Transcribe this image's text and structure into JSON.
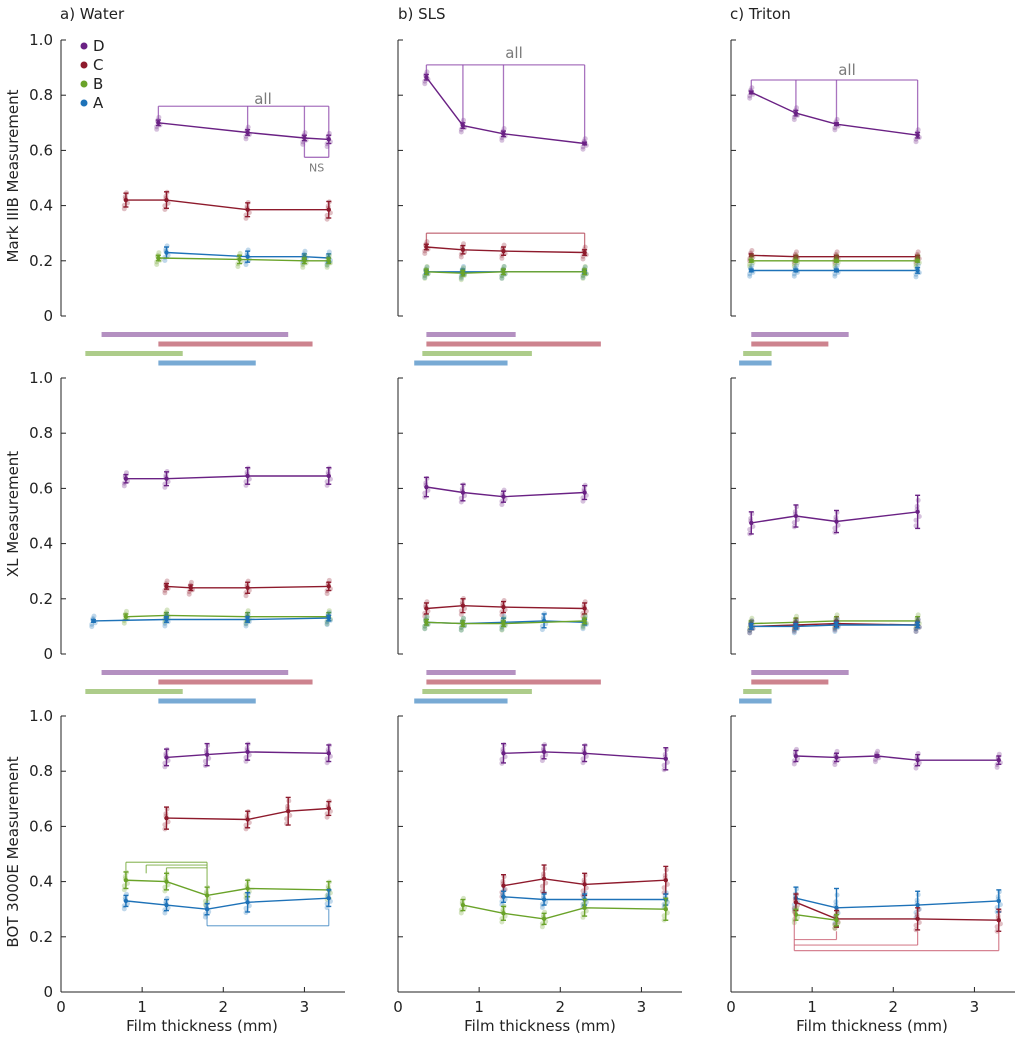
{
  "chart_data": {
    "type": "line",
    "panel_titles": [
      "a) Water",
      "b) SLS",
      "c) Triton"
    ],
    "row_ylabels": [
      "Mark IIIB Measurement",
      "XL Measurement",
      "BOT 3000E Measurement"
    ],
    "xlabel": "Film thickness (mm)",
    "xlim": [
      0,
      3.5
    ],
    "ylim": [
      0,
      1.0
    ],
    "xticks": [
      "0",
      "1",
      "2",
      "3"
    ],
    "yticks": [
      "0",
      "0.2",
      "0.4",
      "0.6",
      "0.8",
      "1.0"
    ],
    "legend": {
      "placement": "top-left",
      "entries": [
        "D",
        "C",
        "B",
        "A"
      ]
    },
    "colors": {
      "D": "#6a2184",
      "C": "#8e1a2c",
      "B": "#6aa329",
      "A": "#1e72b8"
    },
    "annotations": {
      "all": "all",
      "ns": "NS"
    },
    "panels": [
      {
        "row": 0,
        "col": 0,
        "series": [
          {
            "name": "D",
            "x": [
              1.2,
              2.3,
              3.0,
              3.3
            ],
            "y": [
              0.7,
              0.665,
              0.645,
              0.64
            ],
            "err": [
              0.01,
              0.01,
              0.01,
              0.015
            ]
          },
          {
            "name": "C",
            "x": [
              0.8,
              1.3,
              2.3,
              3.3
            ],
            "y": [
              0.42,
              0.42,
              0.385,
              0.385
            ],
            "err": [
              0.025,
              0.03,
              0.025,
              0.03
            ]
          },
          {
            "name": "A",
            "x": [
              1.3,
              2.3,
              3.0,
              3.3
            ],
            "y": [
              0.23,
              0.215,
              0.215,
              0.21
            ],
            "err": [
              0.02,
              0.02,
              0.01,
              0.015
            ]
          },
          {
            "name": "B",
            "x": [
              1.2,
              2.2,
              3.0,
              3.3
            ],
            "y": [
              0.21,
              0.205,
              0.2,
              0.2
            ],
            "err": [
              0.01,
              0.015,
              0.01,
              0.01
            ]
          }
        ]
      },
      {
        "row": 0,
        "col": 1,
        "series": [
          {
            "name": "D",
            "x": [
              0.35,
              0.8,
              1.3,
              2.3
            ],
            "y": [
              0.865,
              0.69,
              0.66,
              0.625
            ],
            "err": [
              0.01,
              0.01,
              0.01,
              0.005
            ]
          },
          {
            "name": "C",
            "x": [
              0.35,
              0.8,
              1.3,
              2.3
            ],
            "y": [
              0.25,
              0.24,
              0.235,
              0.23
            ],
            "err": [
              0.01,
              0.015,
              0.015,
              0.01
            ]
          },
          {
            "name": "A",
            "x": [
              0.35,
              0.8,
              1.3,
              2.3
            ],
            "y": [
              0.16,
              0.16,
              0.16,
              0.16
            ],
            "err": [
              0.005,
              0.01,
              0.01,
              0.005
            ]
          },
          {
            "name": "B",
            "x": [
              0.35,
              0.8,
              1.3,
              2.3
            ],
            "y": [
              0.16,
              0.155,
              0.16,
              0.16
            ],
            "err": [
              0.01,
              0.01,
              0.01,
              0.01
            ]
          }
        ]
      },
      {
        "row": 0,
        "col": 2,
        "series": [
          {
            "name": "D",
            "x": [
              0.25,
              0.8,
              1.3,
              2.3
            ],
            "y": [
              0.81,
              0.735,
              0.695,
              0.655
            ],
            "err": [
              0.005,
              0.01,
              0.005,
              0.01
            ]
          },
          {
            "name": "C",
            "x": [
              0.25,
              0.8,
              1.3,
              2.3
            ],
            "y": [
              0.22,
              0.215,
              0.215,
              0.215
            ],
            "err": [
              0.005,
              0.005,
              0.005,
              0.005
            ]
          },
          {
            "name": "B",
            "x": [
              0.25,
              0.8,
              1.3,
              2.3
            ],
            "y": [
              0.2,
              0.2,
              0.2,
              0.2
            ],
            "err": [
              0.005,
              0.005,
              0.005,
              0.005
            ]
          },
          {
            "name": "A",
            "x": [
              0.25,
              0.8,
              1.3,
              2.3
            ],
            "y": [
              0.165,
              0.165,
              0.165,
              0.165
            ],
            "err": [
              0.005,
              0.005,
              0.005,
              0.01
            ]
          }
        ]
      },
      {
        "row": 1,
        "col": 0,
        "series": [
          {
            "name": "D",
            "x": [
              0.8,
              1.3,
              2.3,
              3.3
            ],
            "y": [
              0.635,
              0.635,
              0.645,
              0.645
            ],
            "err": [
              0.015,
              0.025,
              0.03,
              0.03
            ]
          },
          {
            "name": "C",
            "x": [
              1.3,
              1.6,
              2.3,
              3.3
            ],
            "y": [
              0.245,
              0.24,
              0.24,
              0.245
            ],
            "err": [
              0.01,
              0.01,
              0.02,
              0.015
            ]
          },
          {
            "name": "B",
            "x": [
              0.8,
              1.3,
              2.3,
              3.3
            ],
            "y": [
              0.135,
              0.14,
              0.135,
              0.135
            ],
            "err": [
              0.01,
              0.01,
              0.015,
              0.015
            ]
          },
          {
            "name": "A",
            "x": [
              0.4,
              1.3,
              2.3,
              3.3
            ],
            "y": [
              0.12,
              0.125,
              0.125,
              0.13
            ],
            "err": [
              0.005,
              0.01,
              0.01,
              0.01
            ]
          }
        ]
      },
      {
        "row": 1,
        "col": 1,
        "series": [
          {
            "name": "D",
            "x": [
              0.35,
              0.8,
              1.3,
              2.3
            ],
            "y": [
              0.605,
              0.585,
              0.57,
              0.585
            ],
            "err": [
              0.035,
              0.03,
              0.02,
              0.025
            ]
          },
          {
            "name": "C",
            "x": [
              0.35,
              0.8,
              1.3,
              2.3
            ],
            "y": [
              0.165,
              0.175,
              0.17,
              0.165
            ],
            "err": [
              0.02,
              0.025,
              0.02,
              0.02
            ]
          },
          {
            "name": "A",
            "x": [
              0.35,
              0.8,
              1.3,
              1.8,
              2.3
            ],
            "y": [
              0.115,
              0.11,
              0.115,
              0.12,
              0.115
            ],
            "err": [
              0.01,
              0.01,
              0.015,
              0.025,
              0.01
            ]
          },
          {
            "name": "B",
            "x": [
              0.35,
              0.8,
              1.3,
              2.3
            ],
            "y": [
              0.115,
              0.11,
              0.11,
              0.12
            ],
            "err": [
              0.01,
              0.01,
              0.01,
              0.01
            ]
          }
        ]
      },
      {
        "row": 1,
        "col": 2,
        "series": [
          {
            "name": "D",
            "x": [
              0.25,
              0.8,
              1.3,
              2.3
            ],
            "y": [
              0.475,
              0.5,
              0.48,
              0.515
            ],
            "err": [
              0.04,
              0.04,
              0.04,
              0.06
            ]
          },
          {
            "name": "B",
            "x": [
              0.25,
              0.8,
              1.3,
              2.3
            ],
            "y": [
              0.11,
              0.115,
              0.12,
              0.12
            ],
            "err": [
              0.01,
              0.015,
              0.015,
              0.015
            ]
          },
          {
            "name": "C",
            "x": [
              0.25,
              0.8,
              1.3,
              2.3
            ],
            "y": [
              0.1,
              0.105,
              0.11,
              0.105
            ],
            "err": [
              0.01,
              0.01,
              0.01,
              0.01
            ]
          },
          {
            "name": "A",
            "x": [
              0.25,
              0.8,
              1.3,
              2.3
            ],
            "y": [
              0.1,
              0.1,
              0.105,
              0.105
            ],
            "err": [
              0.01,
              0.01,
              0.01,
              0.01
            ]
          }
        ]
      },
      {
        "row": 2,
        "col": 0,
        "series": [
          {
            "name": "D",
            "x": [
              1.3,
              1.8,
              2.3,
              3.3
            ],
            "y": [
              0.85,
              0.86,
              0.87,
              0.865
            ],
            "err": [
              0.03,
              0.04,
              0.03,
              0.03
            ]
          },
          {
            "name": "C",
            "x": [
              1.3,
              2.3,
              2.8,
              3.3
            ],
            "y": [
              0.63,
              0.625,
              0.655,
              0.665
            ],
            "err": [
              0.04,
              0.03,
              0.05,
              0.025
            ]
          },
          {
            "name": "B",
            "x": [
              0.8,
              1.3,
              1.8,
              2.3,
              3.3
            ],
            "y": [
              0.405,
              0.4,
              0.35,
              0.375,
              0.37
            ],
            "err": [
              0.03,
              0.03,
              0.03,
              0.03,
              0.03
            ]
          },
          {
            "name": "A",
            "x": [
              0.8,
              1.3,
              1.8,
              2.3,
              3.3
            ],
            "y": [
              0.33,
              0.315,
              0.3,
              0.325,
              0.34
            ],
            "err": [
              0.02,
              0.02,
              0.02,
              0.035,
              0.03
            ]
          }
        ]
      },
      {
        "row": 2,
        "col": 1,
        "series": [
          {
            "name": "D",
            "x": [
              1.3,
              1.8,
              2.3,
              3.3
            ],
            "y": [
              0.865,
              0.87,
              0.865,
              0.845
            ],
            "err": [
              0.035,
              0.025,
              0.03,
              0.04
            ]
          },
          {
            "name": "C",
            "x": [
              1.3,
              1.8,
              2.3,
              3.3
            ],
            "y": [
              0.385,
              0.41,
              0.39,
              0.405
            ],
            "err": [
              0.04,
              0.05,
              0.04,
              0.05
            ]
          },
          {
            "name": "A",
            "x": [
              1.3,
              1.8,
              2.3,
              3.3
            ],
            "y": [
              0.345,
              0.335,
              0.335,
              0.335
            ],
            "err": [
              0.02,
              0.02,
              0.02,
              0.02
            ]
          },
          {
            "name": "B",
            "x": [
              0.8,
              1.3,
              1.8,
              2.3,
              3.3
            ],
            "y": [
              0.315,
              0.285,
              0.265,
              0.305,
              0.3
            ],
            "err": [
              0.02,
              0.025,
              0.02,
              0.03,
              0.04
            ]
          }
        ]
      },
      {
        "row": 2,
        "col": 2,
        "series": [
          {
            "name": "D",
            "x": [
              0.8,
              1.3,
              1.8,
              2.3,
              3.3
            ],
            "y": [
              0.855,
              0.85,
              0.855,
              0.84,
              0.84
            ],
            "err": [
              0.02,
              0.015,
              0.005,
              0.02,
              0.015
            ]
          },
          {
            "name": "A",
            "x": [
              0.8,
              1.3,
              2.3,
              3.3
            ],
            "y": [
              0.34,
              0.305,
              0.315,
              0.33
            ],
            "err": [
              0.04,
              0.07,
              0.05,
              0.04
            ]
          },
          {
            "name": "C",
            "x": [
              0.8,
              1.3,
              2.3,
              3.3
            ],
            "y": [
              0.325,
              0.265,
              0.265,
              0.26
            ],
            "err": [
              0.03,
              0.03,
              0.04,
              0.04
            ]
          },
          {
            "name": "B",
            "x": [
              0.8,
              1.3
            ],
            "y": [
              0.28,
              0.26
            ],
            "err": [
              0.02,
              0.02
            ]
          }
        ]
      }
    ],
    "range_bars": [
      {
        "col": 0,
        "D": [
          0.5,
          2.8
        ],
        "C": [
          1.2,
          3.1
        ],
        "B": [
          0.3,
          1.5
        ],
        "A": [
          1.2,
          2.4
        ]
      },
      {
        "col": 1,
        "D": [
          0.35,
          1.45
        ],
        "C": [
          0.35,
          2.5
        ],
        "B": [
          0.3,
          1.65
        ],
        "A": [
          0.2,
          1.35
        ]
      },
      {
        "col": 2,
        "D": [
          0.25,
          1.45
        ],
        "C": [
          0.25,
          1.2
        ],
        "B": [
          0.15,
          0.5
        ],
        "A": [
          0.1,
          0.5
        ]
      }
    ]
  }
}
